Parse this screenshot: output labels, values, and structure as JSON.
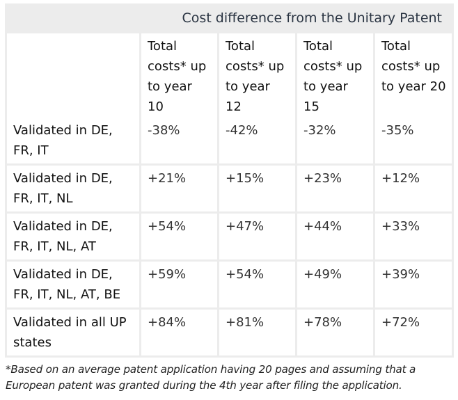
{
  "table": {
    "title": "Cost difference from the Unitary Patent",
    "columns": [
      "",
      "Total costs* up to year 10",
      "Total costs* up to year 12",
      "Total costs* up to year 15",
      "Total costs* up to year 20"
    ],
    "rows": [
      {
        "label": "Validated in DE, FR, IT",
        "values": [
          "-38%",
          "-42%",
          "-32%",
          "-35%"
        ]
      },
      {
        "label": "Validated in DE, FR, IT, NL",
        "values": [
          "+21%",
          "+15%",
          "+23%",
          "+12%"
        ]
      },
      {
        "label": "Validated in DE, FR, IT, NL, AT",
        "values": [
          "+54%",
          "+47%",
          "+44%",
          "+33%"
        ]
      },
      {
        "label": "Validated in DE, FR, IT, NL, AT, BE",
        "values": [
          "+59%",
          "+54%",
          "+49%",
          "+39%"
        ]
      },
      {
        "label": "Validated in all UP states",
        "values": [
          "+84%",
          "+81%",
          "+78%",
          "+72%"
        ]
      }
    ]
  },
  "footnote": "*Based on an average patent application having 20 pages and assuming that a European patent was granted during the 4th year after filing the application.",
  "colors": {
    "table_background": "#ececec",
    "cell_background": "#ffffff",
    "title_text": "#2a3442"
  }
}
